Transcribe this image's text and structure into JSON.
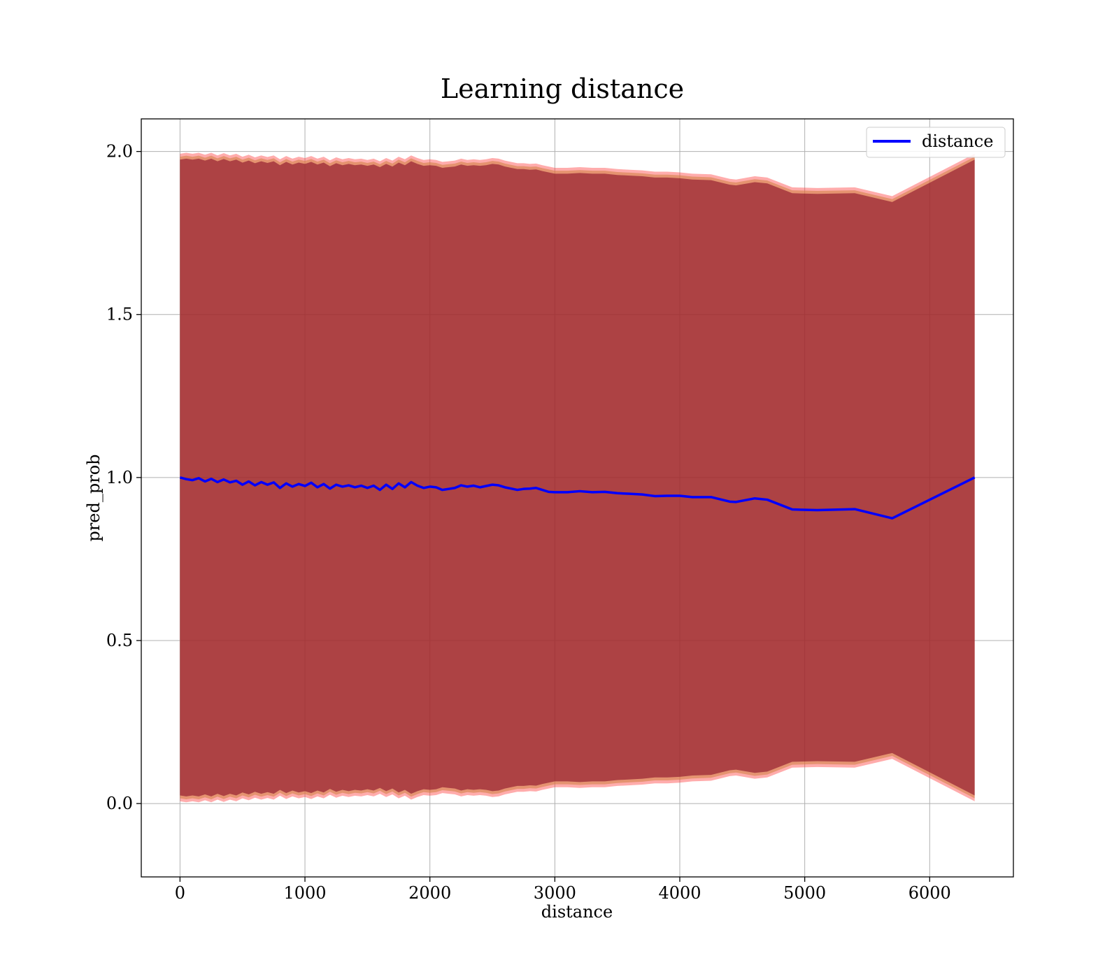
{
  "chart_data": {
    "type": "line",
    "title": "Learning distance",
    "xlabel": "distance",
    "ylabel": "pred_prob",
    "xlim": [
      -310,
      6670
    ],
    "ylim": [
      -0.225,
      2.1
    ],
    "x_ticks": [
      0,
      1000,
      2000,
      3000,
      4000,
      5000,
      6000
    ],
    "y_ticks": [
      0.0,
      0.5,
      1.0,
      1.5,
      2.0
    ],
    "x_tick_labels": [
      "0",
      "1000",
      "2000",
      "3000",
      "4000",
      "5000",
      "6000"
    ],
    "y_tick_labels": [
      "0.0",
      "0.5",
      "1.0",
      "1.5",
      "2.0"
    ],
    "grid": true,
    "legend": {
      "placement": "top-right",
      "entries": [
        "distance"
      ]
    },
    "colors": {
      "line": "#0000ff",
      "band_inner": "#800020",
      "band_inner_opacity": 0.55,
      "band_outer": "#ff3030",
      "band_outer_opacity": 0.4,
      "band_mid": "#d08040",
      "band_mid_opacity": 0.55,
      "grid": "#b0b0b0",
      "axes": "#000000"
    },
    "series": [
      {
        "name": "distance",
        "x": [
          0,
          50,
          100,
          150,
          200,
          250,
          300,
          350,
          400,
          450,
          500,
          550,
          600,
          650,
          700,
          750,
          800,
          850,
          900,
          950,
          1000,
          1050,
          1100,
          1150,
          1200,
          1250,
          1300,
          1350,
          1400,
          1450,
          1500,
          1550,
          1600,
          1650,
          1700,
          1750,
          1800,
          1850,
          1900,
          1950,
          2000,
          2050,
          2100,
          2150,
          2200,
          2250,
          2300,
          2350,
          2400,
          2450,
          2500,
          2550,
          2600,
          2650,
          2700,
          2750,
          2800,
          2850,
          2900,
          2950,
          3000,
          3100,
          3200,
          3300,
          3400,
          3500,
          3600,
          3700,
          3800,
          3900,
          4000,
          4100,
          4250,
          4400,
          4450,
          4600,
          4700,
          4900,
          5100,
          5400,
          5700,
          6360
        ],
        "values": [
          1.0,
          0.995,
          0.992,
          0.998,
          0.988,
          0.996,
          0.986,
          0.994,
          0.985,
          0.99,
          0.978,
          0.988,
          0.976,
          0.986,
          0.978,
          0.985,
          0.968,
          0.982,
          0.972,
          0.98,
          0.974,
          0.984,
          0.97,
          0.98,
          0.966,
          0.978,
          0.972,
          0.976,
          0.97,
          0.975,
          0.968,
          0.975,
          0.962,
          0.978,
          0.965,
          0.982,
          0.97,
          0.986,
          0.975,
          0.968,
          0.972,
          0.97,
          0.962,
          0.965,
          0.968,
          0.976,
          0.972,
          0.975,
          0.97,
          0.974,
          0.978,
          0.976,
          0.97,
          0.966,
          0.962,
          0.965,
          0.966,
          0.968,
          0.962,
          0.956,
          0.955,
          0.955,
          0.958,
          0.955,
          0.956,
          0.952,
          0.95,
          0.948,
          0.943,
          0.944,
          0.944,
          0.94,
          0.94,
          0.926,
          0.925,
          0.936,
          0.932,
          0.902,
          0.9,
          0.903,
          0.875,
          1.0
        ],
        "band_upper": [
          1.975,
          1.978,
          1.975,
          1.978,
          1.972,
          1.978,
          1.97,
          1.977,
          1.97,
          1.975,
          1.966,
          1.972,
          1.964,
          1.97,
          1.965,
          1.97,
          1.958,
          1.968,
          1.96,
          1.966,
          1.962,
          1.968,
          1.96,
          1.966,
          1.955,
          1.964,
          1.958,
          1.962,
          1.958,
          1.96,
          1.956,
          1.96,
          1.952,
          1.962,
          1.954,
          1.966,
          1.958,
          1.97,
          1.962,
          1.956,
          1.958,
          1.956,
          1.95,
          1.952,
          1.954,
          1.96,
          1.956,
          1.958,
          1.956,
          1.958,
          1.962,
          1.96,
          1.954,
          1.95,
          1.946,
          1.946,
          1.944,
          1.945,
          1.94,
          1.936,
          1.932,
          1.932,
          1.934,
          1.932,
          1.932,
          1.928,
          1.926,
          1.924,
          1.92,
          1.92,
          1.918,
          1.914,
          1.912,
          1.898,
          1.896,
          1.906,
          1.902,
          1.872,
          1.87,
          1.872,
          1.845,
          1.975
        ],
        "band_lower": [
          0.025,
          0.022,
          0.025,
          0.022,
          0.028,
          0.022,
          0.03,
          0.023,
          0.03,
          0.025,
          0.034,
          0.028,
          0.036,
          0.03,
          0.035,
          0.03,
          0.042,
          0.032,
          0.04,
          0.034,
          0.038,
          0.032,
          0.04,
          0.034,
          0.045,
          0.036,
          0.042,
          0.038,
          0.042,
          0.04,
          0.044,
          0.04,
          0.048,
          0.038,
          0.046,
          0.034,
          0.042,
          0.03,
          0.038,
          0.044,
          0.042,
          0.044,
          0.05,
          0.048,
          0.046,
          0.04,
          0.044,
          0.042,
          0.044,
          0.042,
          0.038,
          0.04,
          0.046,
          0.05,
          0.054,
          0.054,
          0.056,
          0.055,
          0.06,
          0.064,
          0.068,
          0.068,
          0.066,
          0.068,
          0.068,
          0.072,
          0.074,
          0.076,
          0.08,
          0.08,
          0.082,
          0.086,
          0.088,
          0.102,
          0.104,
          0.094,
          0.098,
          0.128,
          0.13,
          0.128,
          0.155,
          0.025
        ]
      }
    ]
  }
}
